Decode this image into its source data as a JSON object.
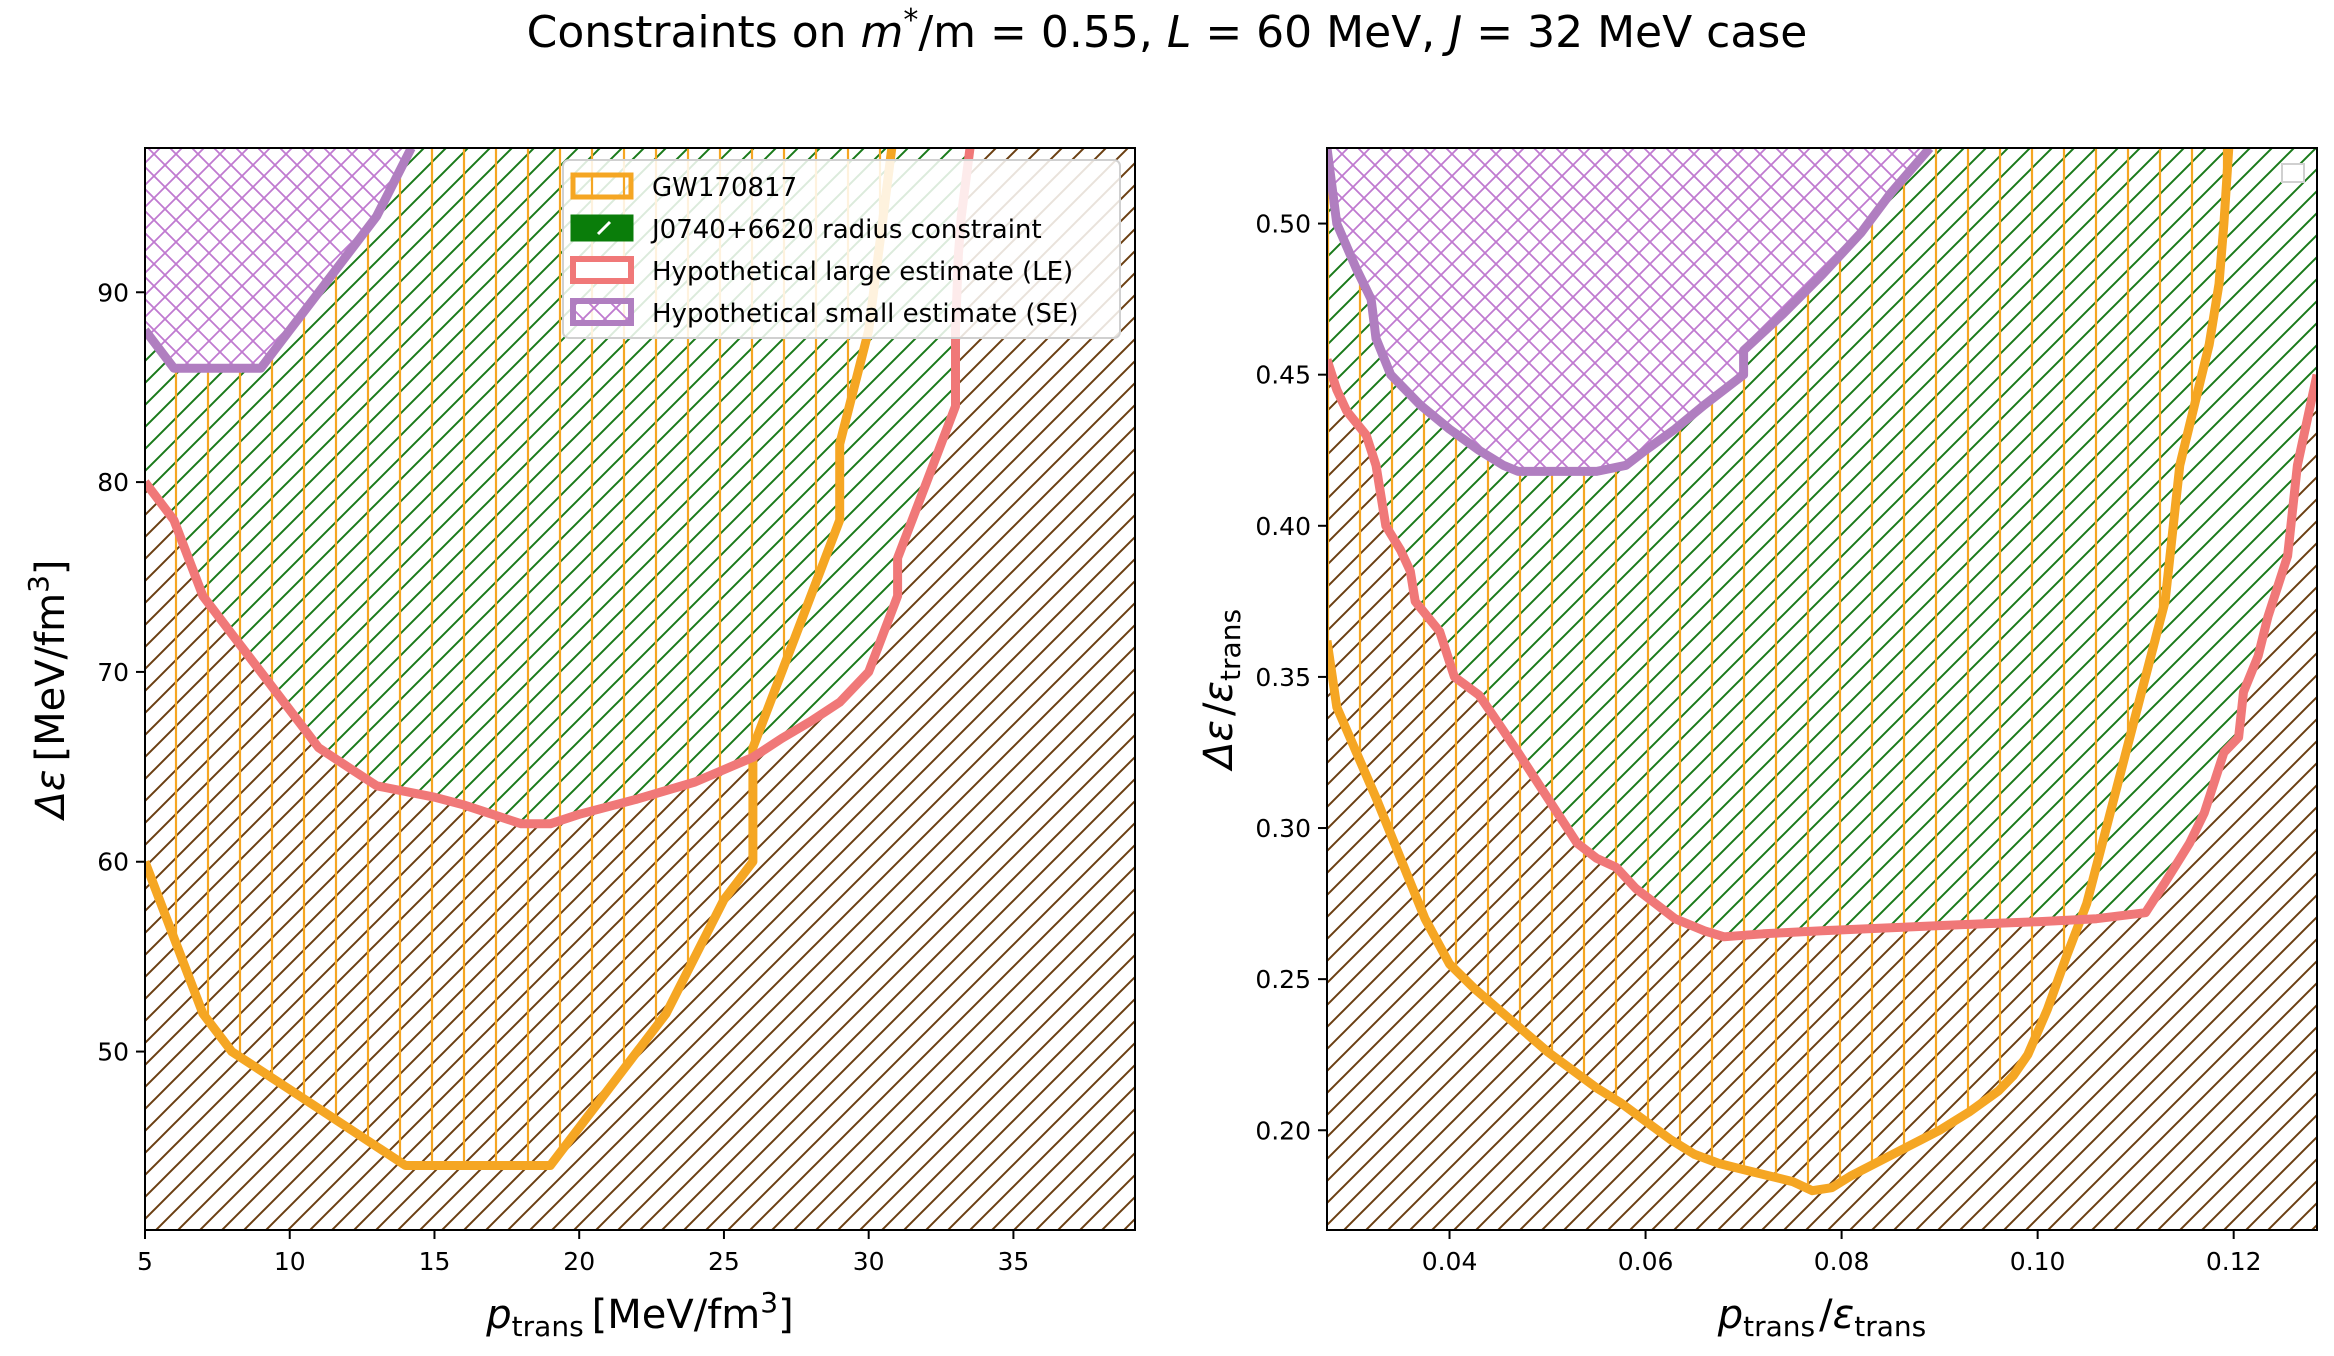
{
  "title": "Constraints on m*/m = 0.55, L = 60 MeV, J = 32 MeV case",
  "title_parts": {
    "prefix": "Constraints on ",
    "mstar": "m",
    "star": "*",
    "slash": "/m = 0.55, ",
    "L": "L",
    "Lval": " = 60 MeV, ",
    "J": "J",
    "Jval": " = 32 MeV case"
  },
  "colors": {
    "gw": "#f5a623",
    "gw_hatch": "#f5a623",
    "j0740": "#1a7a1a",
    "j0740_legend": "#0a7d0a",
    "le": "#f07878",
    "se": "#b07ec0",
    "se_hatch": "#c07ad0",
    "brown_hatch": "#6b3f12",
    "green_hatch": "#1a7a1a"
  },
  "legend": {
    "location": "upper-center of left panel",
    "entries": [
      {
        "key": "gw",
        "label": "GW170817"
      },
      {
        "key": "j0740",
        "label": "J0740+6620 radius constraint"
      },
      {
        "key": "le",
        "label": "Hypothetical large estimate (LE)"
      },
      {
        "key": "se",
        "label": "Hypothetical small estimate (SE)"
      }
    ]
  },
  "chart_data": [
    {
      "type": "line",
      "panel": "left",
      "xlabel": "p_trans [MeV/fm^3]",
      "xlabel_parts": {
        "p": "p",
        "sub": "trans",
        "unit": "[MeV/fm",
        "sup": "3",
        "close": "]"
      },
      "ylabel": "Δε [MeV/fm^3]",
      "ylabel_parts": {
        "d": "Δε",
        "unit": "[MeV/fm",
        "sup": "3",
        "close": "]"
      },
      "xlim": [
        5,
        39.2
      ],
      "ylim": [
        40.6,
        97.6
      ],
      "xticks": [
        5,
        10,
        15,
        20,
        25,
        30,
        35
      ],
      "xtick_labels": [
        "5",
        "10",
        "15",
        "20",
        "25",
        "30",
        "35"
      ],
      "yticks": [
        50,
        60,
        70,
        80,
        90
      ],
      "ytick_labels": [
        "50",
        "60",
        "70",
        "80",
        "90"
      ],
      "series": [
        {
          "name": "GW170817",
          "key": "gw",
          "x": [
            5,
            6,
            7,
            8,
            10,
            12,
            14,
            15,
            17,
            19,
            21,
            23,
            25,
            26,
            26,
            27,
            28,
            29,
            29,
            30,
            30.5,
            30.8
          ],
          "y": [
            60,
            56,
            52,
            50,
            48,
            46,
            44,
            44,
            44,
            44,
            48,
            52,
            58,
            60,
            66,
            70,
            74,
            78,
            82,
            88,
            94,
            97.6
          ]
        },
        {
          "name": "Hypothetical large estimate (LE)",
          "key": "le",
          "x": [
            5,
            6,
            7,
            8,
            9,
            10,
            11,
            13,
            15,
            16,
            17,
            18,
            19,
            20,
            22,
            24,
            26,
            27,
            28,
            29,
            30,
            31,
            31,
            32,
            33,
            33,
            33.1,
            33.2,
            33.5
          ],
          "y": [
            80,
            78,
            74,
            72,
            70,
            68,
            66,
            64,
            63.4,
            63,
            62.5,
            62,
            62,
            62.5,
            63.3,
            64.2,
            65.5,
            66.5,
            67.4,
            68.4,
            70,
            74,
            76,
            80,
            84,
            88,
            92,
            94,
            97.6
          ]
        },
        {
          "name": "Hypothetical small estimate (SE)",
          "key": "se",
          "x": [
            5,
            6,
            7,
            8,
            9,
            10,
            11,
            12,
            13,
            14,
            14.2
          ],
          "y": [
            88,
            86,
            86,
            86,
            86,
            88,
            90,
            92,
            94,
            97,
            97.6
          ]
        }
      ]
    },
    {
      "type": "line",
      "panel": "right",
      "xlabel": "p_trans / ε_trans",
      "xlabel_parts": {
        "p": "p",
        "sub": "trans",
        "slash": "/",
        "e": "ε",
        "esub": "trans"
      },
      "ylabel": "Δε / ε_trans",
      "ylabel_parts": {
        "d": "Δε",
        "slash": "/",
        "e": "ε",
        "esub": "trans"
      },
      "xlim": [
        0.0275,
        0.1285
      ],
      "ylim": [
        0.167,
        0.525
      ],
      "xticks": [
        0.04,
        0.06,
        0.08,
        0.1,
        0.12
      ],
      "xtick_labels": [
        "0.04",
        "0.06",
        "0.08",
        "0.10",
        "0.12"
      ],
      "yticks": [
        0.2,
        0.25,
        0.3,
        0.35,
        0.4,
        0.45,
        0.5
      ],
      "ytick_labels": [
        "0.20",
        "0.25",
        "0.30",
        "0.35",
        "0.40",
        "0.45",
        "0.50"
      ],
      "series": [
        {
          "name": "GW170817",
          "key": "gw",
          "x": [
            0.0275,
            0.0285,
            0.0305,
            0.0325,
            0.035,
            0.0375,
            0.04,
            0.0425,
            0.045,
            0.0475,
            0.05,
            0.0525,
            0.055,
            0.0575,
            0.06,
            0.0625,
            0.065,
            0.0675,
            0.07,
            0.0725,
            0.075,
            0.077,
            0.079,
            0.081,
            0.084,
            0.087,
            0.09,
            0.093,
            0.096,
            0.0975,
            0.099,
            0.101,
            0.103,
            0.105,
            0.107,
            0.109,
            0.111,
            0.113,
            0.1135,
            0.1145,
            0.116,
            0.1175,
            0.1185,
            0.119,
            0.1195
          ],
          "y": [
            0.362,
            0.34,
            0.325,
            0.31,
            0.29,
            0.27,
            0.255,
            0.247,
            0.24,
            0.233,
            0.226,
            0.22,
            0.214,
            0.209,
            0.203,
            0.197,
            0.192,
            0.189,
            0.187,
            0.185,
            0.183,
            0.18,
            0.181,
            0.185,
            0.19,
            0.195,
            0.2,
            0.206,
            0.213,
            0.218,
            0.225,
            0.24,
            0.258,
            0.275,
            0.3,
            0.325,
            0.35,
            0.375,
            0.39,
            0.42,
            0.44,
            0.46,
            0.48,
            0.5,
            0.525
          ]
        },
        {
          "name": "Hypothetical large estimate (LE)",
          "key": "le",
          "x": [
            0.0275,
            0.0285,
            0.0295,
            0.0315,
            0.0325,
            0.0335,
            0.035,
            0.036,
            0.0365,
            0.039,
            0.04,
            0.0405,
            0.043,
            0.0445,
            0.047,
            0.05,
            0.053,
            0.055,
            0.057,
            0.059,
            0.061,
            0.063,
            0.066,
            0.068,
            0.072,
            0.078,
            0.085,
            0.092,
            0.1,
            0.106,
            0.111,
            0.113,
            0.1155,
            0.117,
            0.118,
            0.119,
            0.1205,
            0.121,
            0.1225,
            0.1235,
            0.1255,
            0.126,
            0.1265,
            0.1285
          ],
          "y": [
            0.455,
            0.445,
            0.438,
            0.43,
            0.42,
            0.4,
            0.392,
            0.385,
            0.375,
            0.365,
            0.355,
            0.35,
            0.344,
            0.337,
            0.325,
            0.31,
            0.295,
            0.29,
            0.287,
            0.28,
            0.275,
            0.27,
            0.266,
            0.264,
            0.265,
            0.266,
            0.267,
            0.268,
            0.269,
            0.27,
            0.272,
            0.282,
            0.295,
            0.305,
            0.315,
            0.325,
            0.33,
            0.345,
            0.357,
            0.37,
            0.39,
            0.405,
            0.42,
            0.45
          ]
        },
        {
          "name": "Hypothetical small estimate (SE)",
          "key": "se",
          "x": [
            0.0275,
            0.0285,
            0.0305,
            0.032,
            0.0325,
            0.034,
            0.037,
            0.04,
            0.043,
            0.0455,
            0.047,
            0.05,
            0.053,
            0.055,
            0.058,
            0.06,
            0.063,
            0.066,
            0.07,
            0.07,
            0.074,
            0.078,
            0.082,
            0.085,
            0.089
          ],
          "y": [
            0.525,
            0.5,
            0.485,
            0.475,
            0.462,
            0.45,
            0.44,
            0.432,
            0.425,
            0.42,
            0.418,
            0.418,
            0.418,
            0.418,
            0.42,
            0.425,
            0.432,
            0.44,
            0.45,
            0.458,
            0.47,
            0.483,
            0.497,
            0.51,
            0.525
          ]
        }
      ]
    }
  ]
}
